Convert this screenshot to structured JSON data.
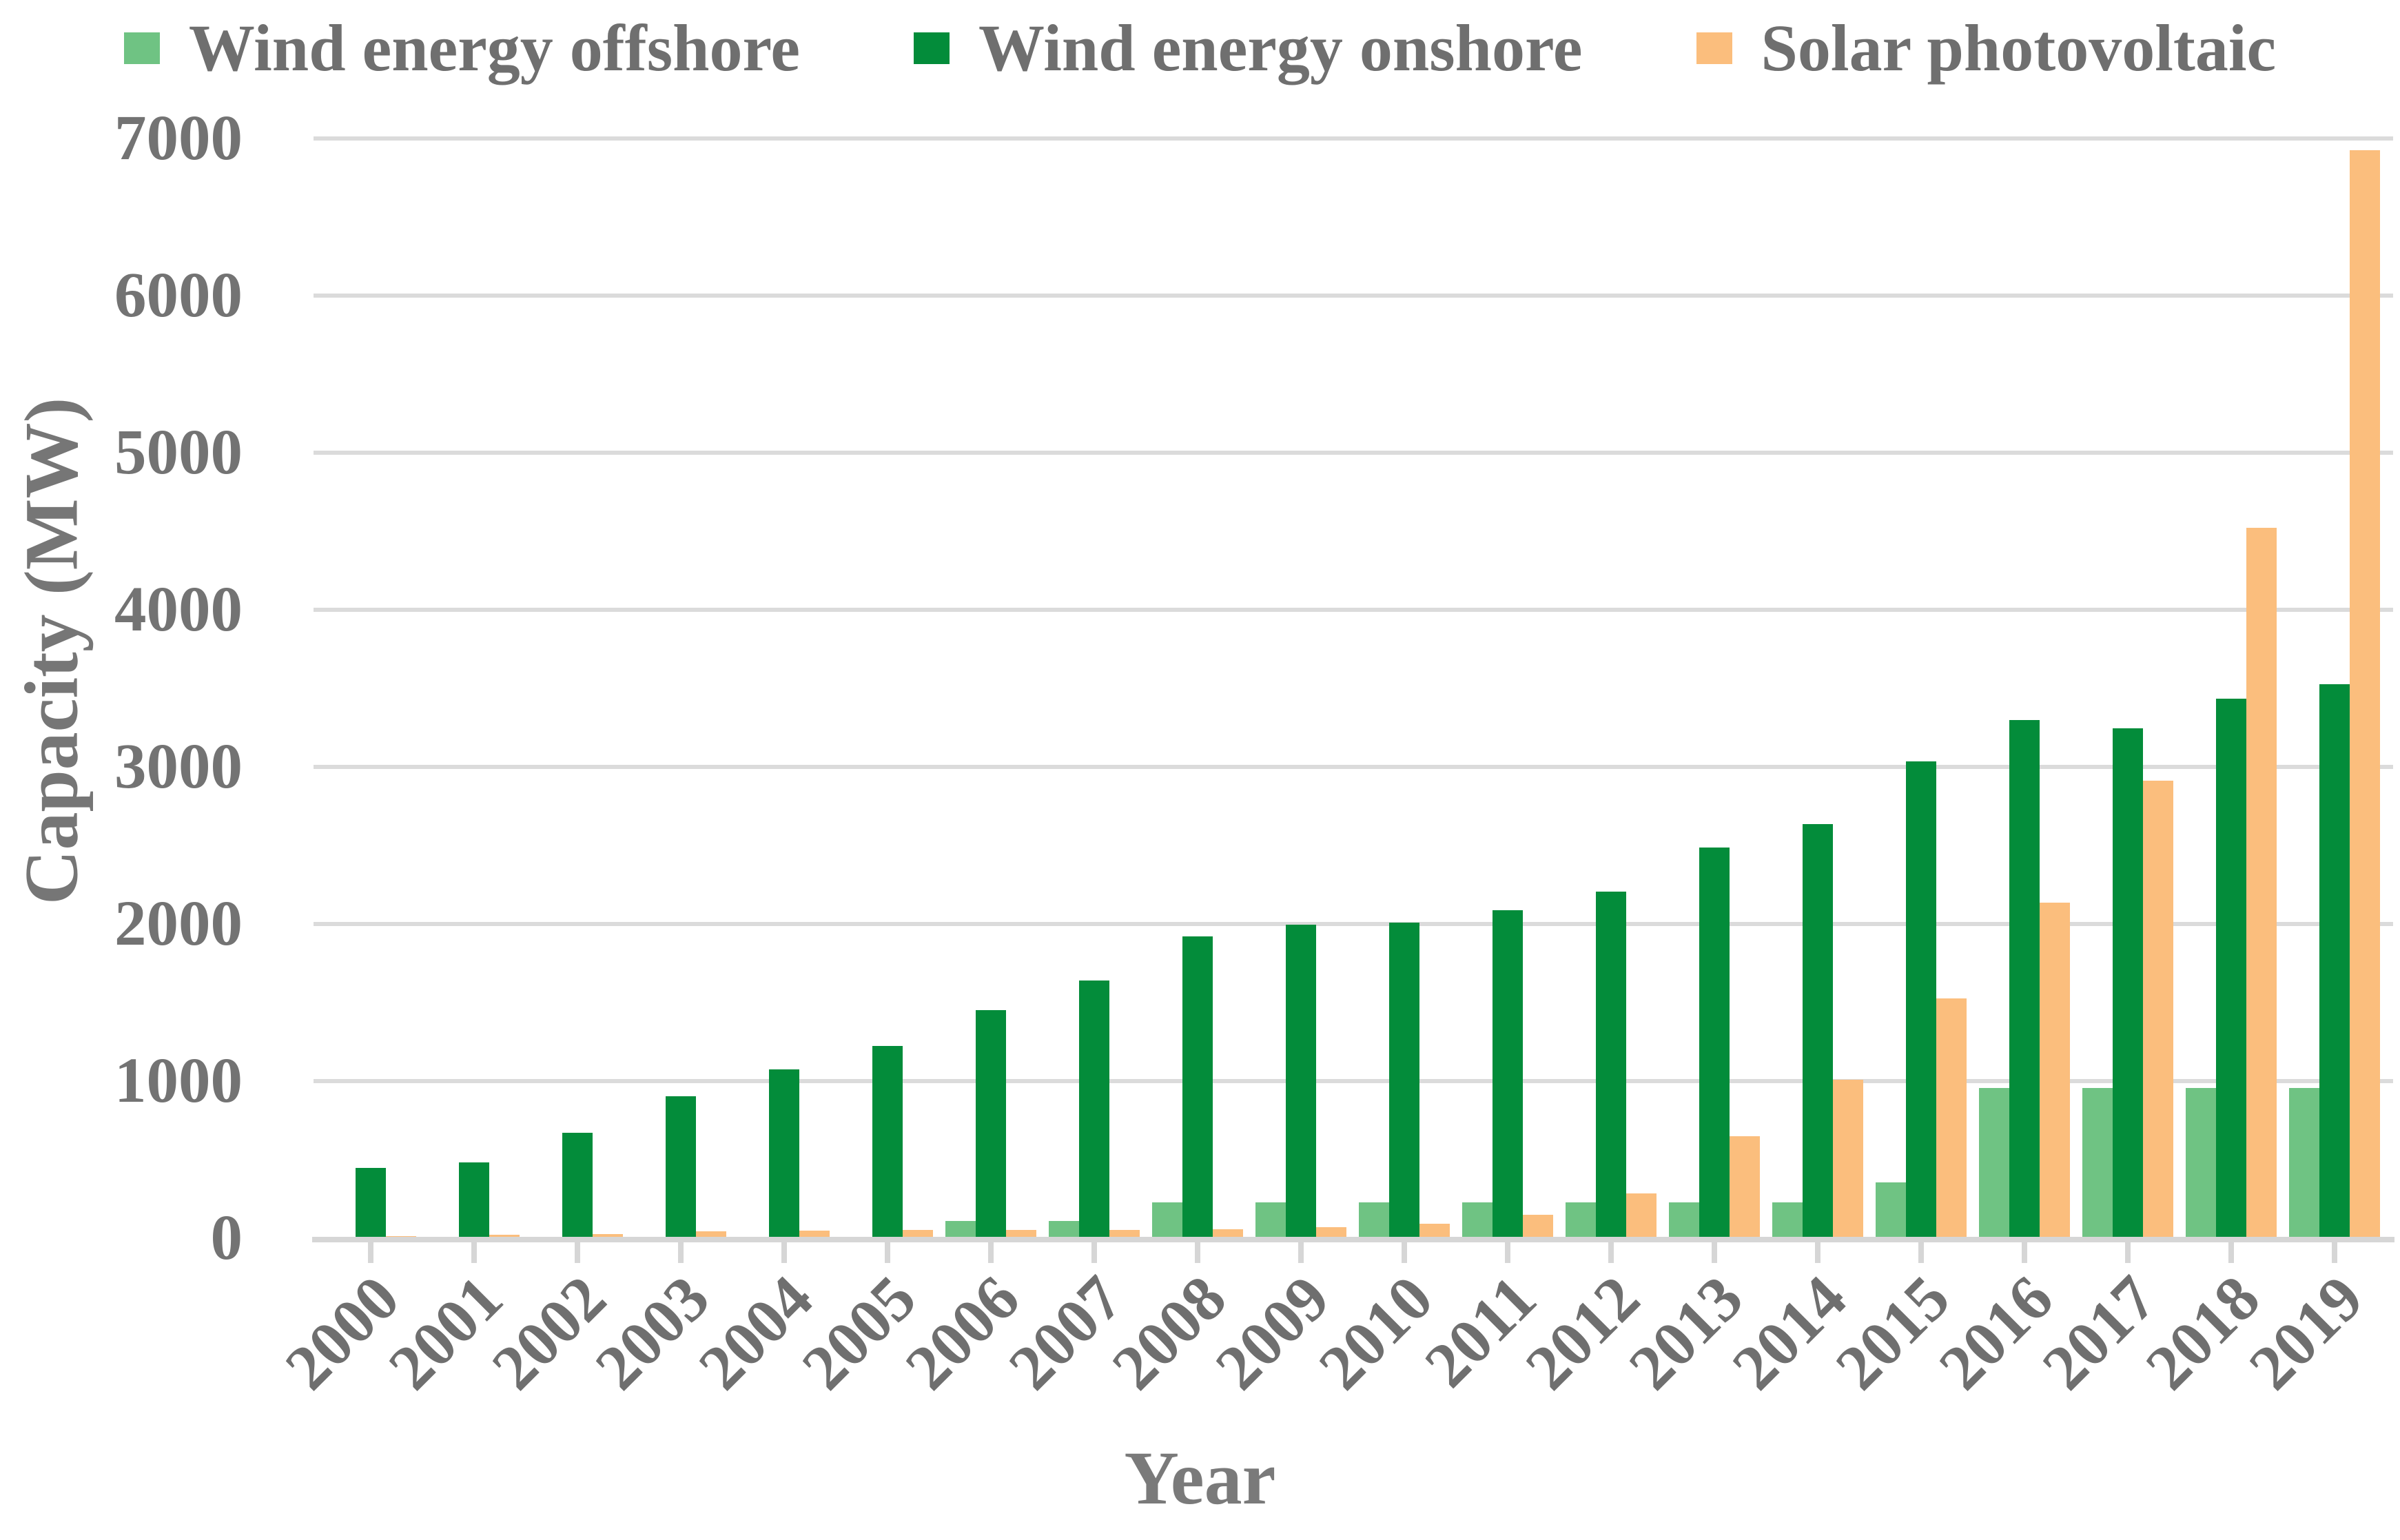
{
  "colors": {
    "offshore": "#6fc383",
    "onshore": "#038c3a",
    "solar": "#fbbe7d",
    "grid": "#dbdbdb",
    "axis_text": "#737373"
  },
  "legend": {
    "items": [
      {
        "key": "offshore",
        "label": "Wind energy offshore",
        "color": "#6fc383"
      },
      {
        "key": "onshore",
        "label": "Wind energy onshore",
        "color": "#038c3a"
      },
      {
        "key": "solar",
        "label": "Solar photovoltaic",
        "color": "#fbbe7d"
      }
    ]
  },
  "chart_data": {
    "type": "bar",
    "title": "",
    "xlabel": "Year",
    "ylabel": "Capacity (MW)",
    "ylim": [
      0,
      7000
    ],
    "ytick_interval": 1000,
    "yticks": [
      "0",
      "1000",
      "2000",
      "3000",
      "4000",
      "5000",
      "6000",
      "7000"
    ],
    "grid": true,
    "legend_position": "top",
    "categories": [
      "2000",
      "2001",
      "2002",
      "2003",
      "2004",
      "2005",
      "2006",
      "2007",
      "2008",
      "2009",
      "2010",
      "2011",
      "2012",
      "2013",
      "2014",
      "2015",
      "2016",
      "2017",
      "2018",
      "2019"
    ],
    "series": [
      {
        "name": "Wind energy offshore",
        "key": "offshore",
        "color": "#6fc383",
        "values": [
          0,
          0,
          0,
          0,
          0,
          0,
          108,
          108,
          228,
          228,
          228,
          228,
          228,
          228,
          228,
          357,
          957,
          957,
          957,
          957
        ]
      },
      {
        "name": "Wind energy onshore",
        "key": "onshore",
        "color": "#038c3a",
        "values": [
          447,
          481,
          672,
          905,
          1075,
          1224,
          1453,
          1641,
          1921,
          1994,
          2009,
          2088,
          2205,
          2485,
          2637,
          3034,
          3300,
          3245,
          3436,
          3527
        ]
      },
      {
        "name": "Solar photovoltaic",
        "key": "solar",
        "color": "#fbbe7d",
        "values": [
          13,
          21,
          26,
          46,
          49,
          51,
          52,
          53,
          57,
          68,
          90,
          149,
          287,
          650,
          1007,
          1526,
          2135,
          2911,
          4522,
          6924
        ]
      }
    ]
  }
}
